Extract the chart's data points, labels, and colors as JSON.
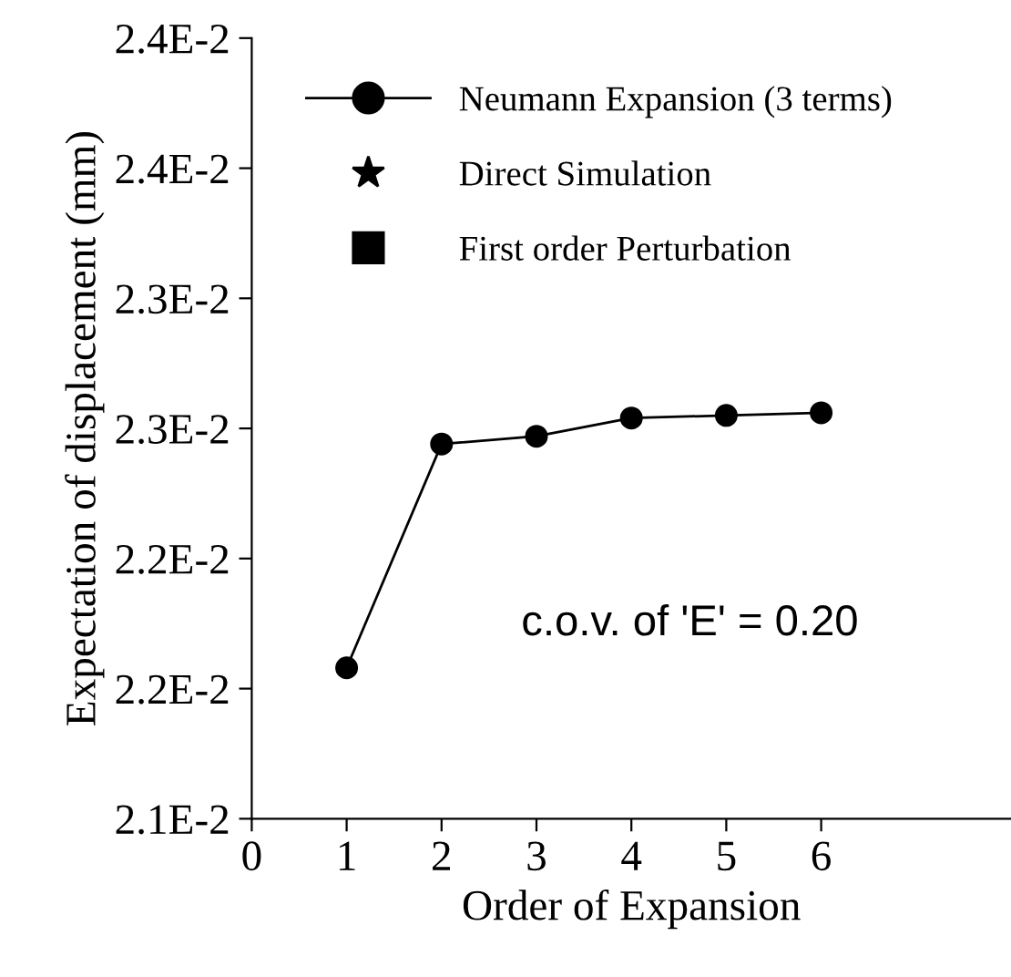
{
  "chart_data": {
    "type": "line",
    "xlabel": "Order of Expansion",
    "ylabel": "Expectation of displacement (mm)",
    "x": [
      1,
      2,
      3,
      4,
      5,
      6
    ],
    "series": [
      {
        "name": "Neumann Expansion (3 terms)",
        "color": "#000000",
        "values": [
          0.02158,
          0.02244,
          0.02247,
          0.02254,
          0.02255,
          0.02256
        ],
        "marker": "circle",
        "line_style": "solid"
      },
      {
        "name": "Direct Simulation",
        "color": "#000000",
        "values": [
          null,
          null,
          null,
          null,
          null,
          null
        ],
        "marker": "star",
        "line_style": "none"
      },
      {
        "name": "First order Perturbation",
        "color": "#000000",
        "values": [
          null,
          null,
          null,
          null,
          null,
          null
        ],
        "marker": "square",
        "line_style": "none"
      }
    ],
    "xlim": [
      0,
      8
    ],
    "xticks": [
      0,
      1,
      2,
      3,
      4,
      5,
      6
    ],
    "ylim": [
      0.021,
      0.024
    ],
    "yticks": [
      {
        "value": 0.021,
        "label": "2.1E-2"
      },
      {
        "value": 0.0215,
        "label": "2.2E-2"
      },
      {
        "value": 0.022,
        "label": "2.2E-2"
      },
      {
        "value": 0.0225,
        "label": "2.3E-2"
      },
      {
        "value": 0.023,
        "label": "2.3E-2"
      },
      {
        "value": 0.0235,
        "label": "2.4E-2"
      },
      {
        "value": 0.024,
        "label": "2.4E-2"
      }
    ],
    "annotations": [
      "c.o.v. of 'E' = 0.20"
    ],
    "grid": false,
    "legend": "top left"
  }
}
